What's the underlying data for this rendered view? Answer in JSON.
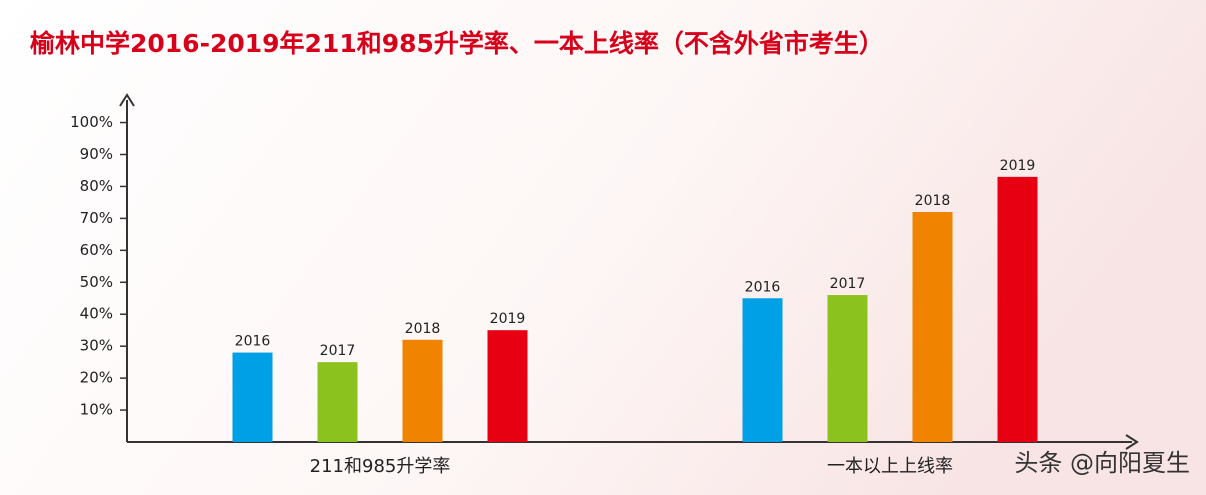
{
  "chart_data": {
    "type": "bar",
    "title": "榆林中学2016-2019年211和985升学率、一本上线率（不含外省市考生）",
    "categories": [
      "211和985升学率",
      "一本以上上线率"
    ],
    "series": [
      {
        "name": "2016",
        "color": "#00a0e6",
        "values": [
          28,
          45
        ]
      },
      {
        "name": "2017",
        "color": "#8cc21e",
        "values": [
          25,
          46
        ]
      },
      {
        "name": "2018",
        "color": "#f08300",
        "values": [
          32,
          72
        ]
      },
      {
        "name": "2019",
        "color": "#e60012",
        "values": [
          35,
          83
        ]
      }
    ],
    "ylim": [
      0,
      108
    ],
    "yticks": [
      {
        "value": 10,
        "label": "10%"
      },
      {
        "value": 20,
        "label": "20%"
      },
      {
        "value": 30,
        "label": "30%"
      },
      {
        "value": 40,
        "label": "40%"
      },
      {
        "value": 50,
        "label": "50%"
      },
      {
        "value": 60,
        "label": "60%"
      },
      {
        "value": 70,
        "label": "70%"
      },
      {
        "value": 80,
        "label": "80%"
      },
      {
        "value": 90,
        "label": "90%"
      },
      {
        "value": 100,
        "label": "100%"
      }
    ],
    "grid": false,
    "watermark": "头条 @向阳夏生"
  }
}
